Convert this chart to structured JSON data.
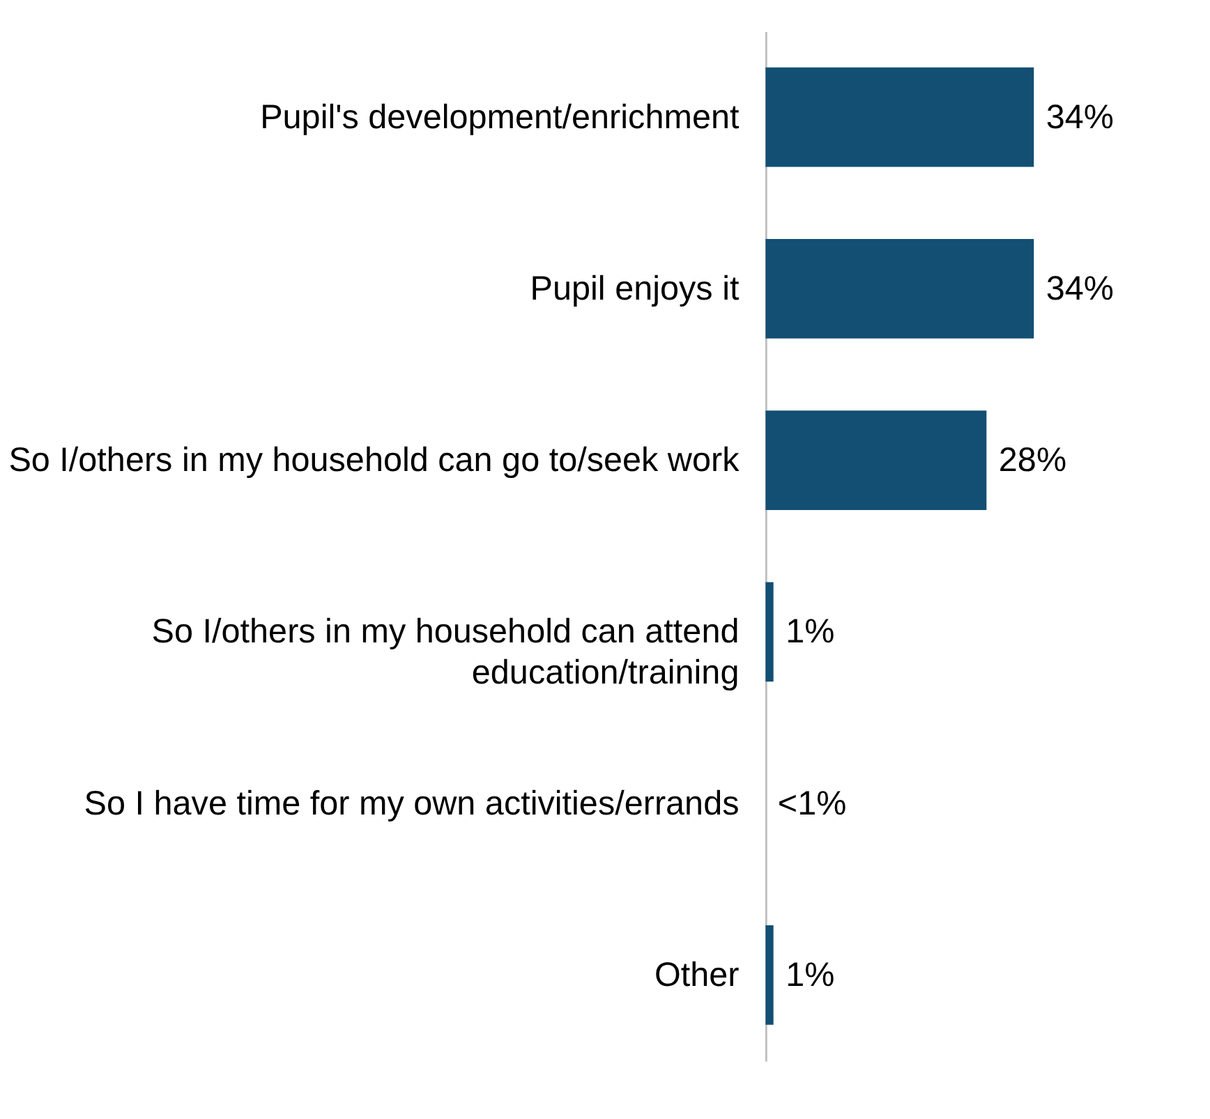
{
  "chart_data": {
    "type": "bar",
    "orientation": "horizontal",
    "categories": [
      "Pupil's development/enrichment",
      "Pupil enjoys it",
      "So I/others in my household can go to/seek work",
      "So I/others in my household can attend\neducation/training",
      "So I have time for my own activities/errands",
      "Other"
    ],
    "values": [
      34,
      34,
      28,
      1,
      0,
      1
    ],
    "value_labels": [
      "34%",
      "34%",
      "28%",
      "1%",
      "<1%",
      "1%"
    ],
    "color": "#134f73",
    "grid": false
  }
}
